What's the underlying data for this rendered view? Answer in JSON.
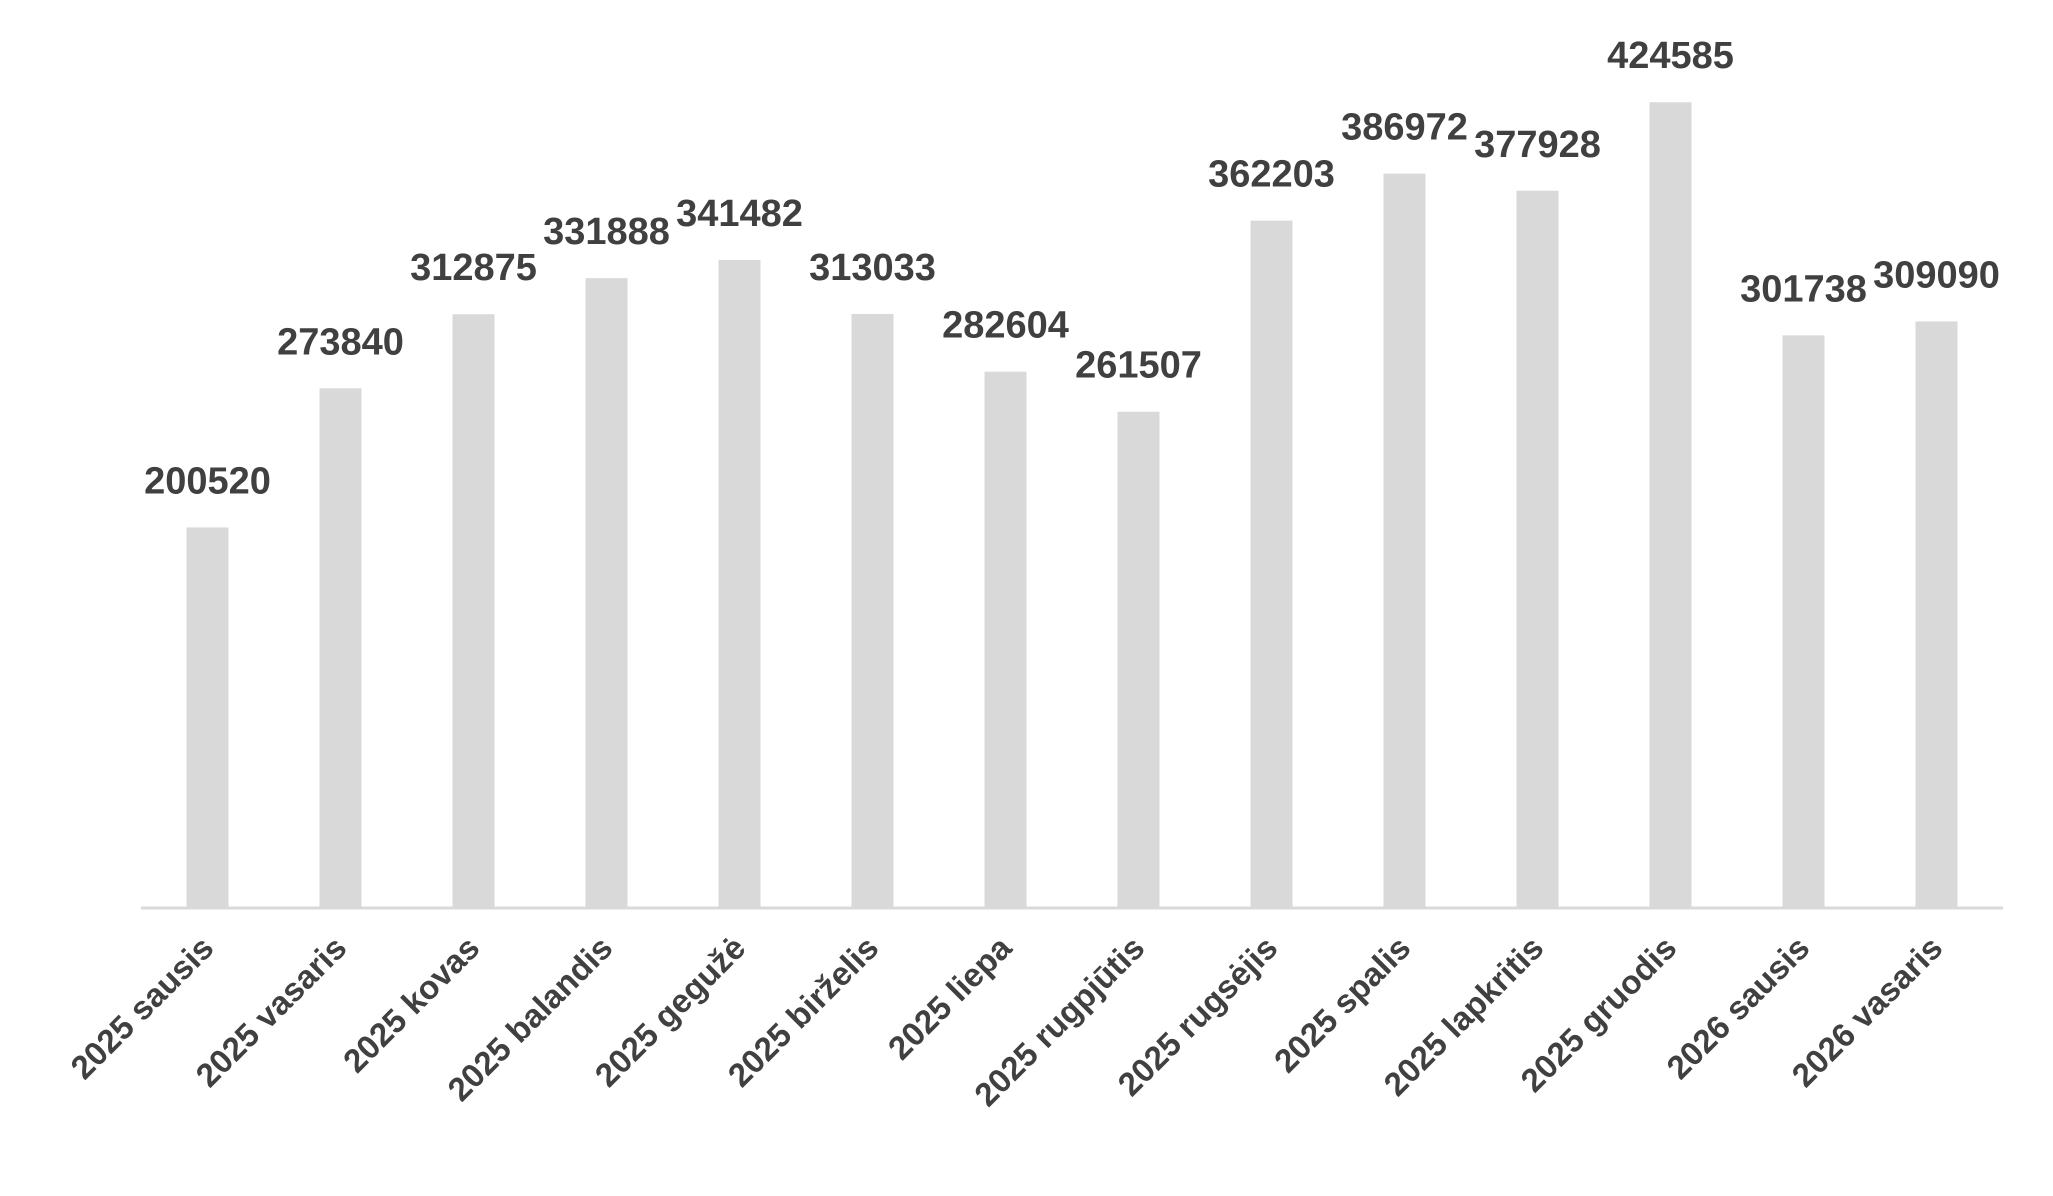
{
  "chart_data": {
    "type": "bar",
    "categories": [
      "2025 sausis",
      "2025 vasaris",
      "2025 kovas",
      "2025 balandis",
      "2025 gegužė",
      "2025 birželis",
      "2025 liepa",
      "2025 rugpjūtis",
      "2025 rugsėjis",
      "2025 spalis",
      "2025 lapkritis",
      "2025 gruodis",
      "2026 sausis",
      "2026 vasaris"
    ],
    "values": [
      200520,
      273840,
      312875,
      331888,
      341482,
      313033,
      282604,
      261507,
      362203,
      386972,
      377928,
      424585,
      301738,
      309090
    ],
    "color": "#d9d9d9",
    "ylim": [
      0,
      450000
    ]
  }
}
